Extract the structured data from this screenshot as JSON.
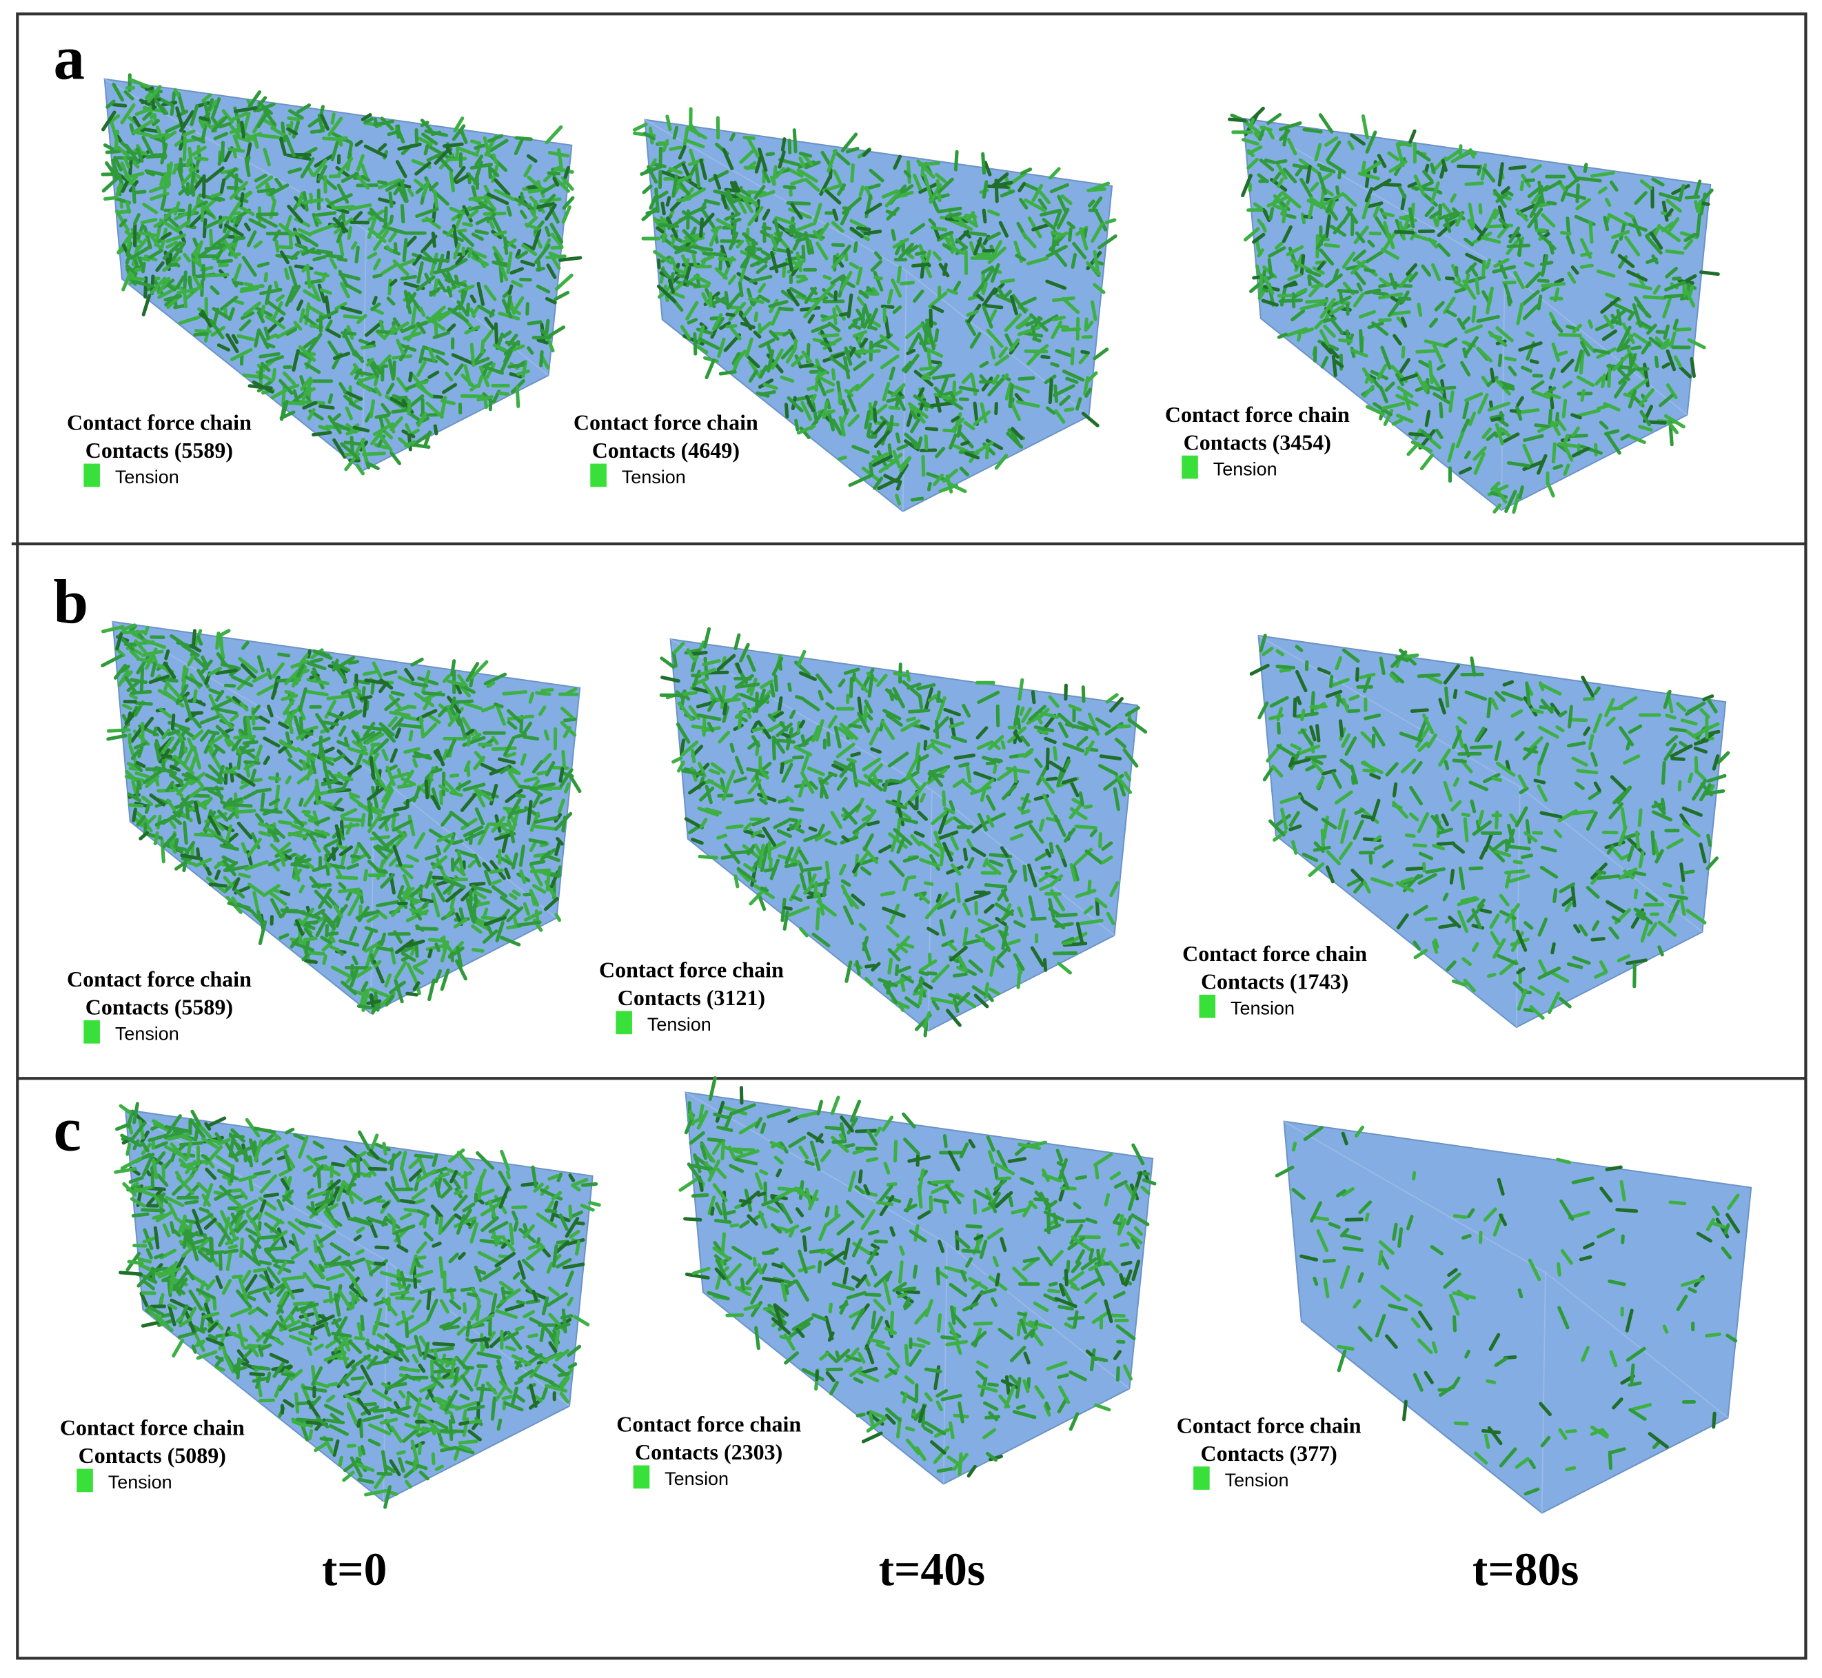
{
  "rows": [
    {
      "label": "a",
      "panels": [
        {
          "title": "Contact force chain",
          "contacts": "Contacts (5589)",
          "legend": "Tension"
        },
        {
          "title": "Contact force chain",
          "contacts": "Contacts (4649)",
          "legend": "Tension"
        },
        {
          "title": "Contact force chain",
          "contacts": "Contacts (3454)",
          "legend": "Tension"
        }
      ]
    },
    {
      "label": "b",
      "panels": [
        {
          "title": "Contact force chain",
          "contacts": "Contacts (5589)",
          "legend": "Tension"
        },
        {
          "title": "Contact force chain",
          "contacts": "Contacts (3121)",
          "legend": "Tension"
        },
        {
          "title": "Contact force chain",
          "contacts": "Contacts (1743)",
          "legend": "Tension"
        }
      ]
    },
    {
      "label": "c",
      "panels": [
        {
          "title": "Contact force chain",
          "contacts": "Contacts (5089)",
          "legend": "Tension"
        },
        {
          "title": "Contact force chain",
          "contacts": "Contacts (2303)",
          "legend": "Tension"
        },
        {
          "title": "Contact force chain",
          "contacts": "Contacts (377)",
          "legend": "Tension"
        }
      ]
    }
  ],
  "time_labels": [
    "t=0",
    "t=40s",
    "t=80s"
  ]
}
